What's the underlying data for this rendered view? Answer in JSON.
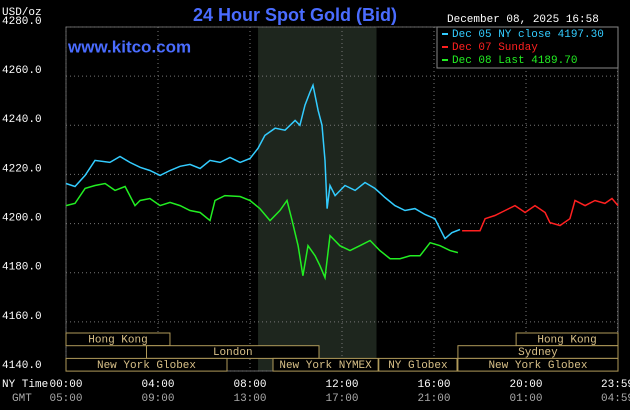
{
  "chart_data": {
    "type": "line",
    "title": "24 Hour Spot Gold (Bid)",
    "site": "www.kitco.com",
    "y_label": "USD/oz",
    "timestamp": "December 08, 2025 16:58",
    "x_row_labels": [
      "NY Time",
      "GMT"
    ],
    "xlim": [
      0,
      24
    ],
    "ylim": [
      4140,
      4280
    ],
    "yticks": [
      {
        "value": 4140,
        "label": "4140.0"
      },
      {
        "value": 4160,
        "label": "4160.0"
      },
      {
        "value": 4180,
        "label": "4180.0"
      },
      {
        "value": 4200,
        "label": "4200.0"
      },
      {
        "value": 4220,
        "label": "4220.0"
      },
      {
        "value": 4240,
        "label": "4240.0"
      },
      {
        "value": 4260,
        "label": "4260.0"
      },
      {
        "value": 4280,
        "label": "4280.0"
      }
    ],
    "xticks": [
      {
        "value": 0,
        "label": "00:00"
      },
      {
        "value": 4,
        "label": "04:00"
      },
      {
        "value": 8,
        "label": "08:00"
      },
      {
        "value": 12,
        "label": "12:00"
      },
      {
        "value": 16,
        "label": "16:00"
      },
      {
        "value": 20,
        "label": "20:00"
      },
      {
        "value": 23.98,
        "label": "23:59"
      }
    ],
    "gmt_ticks": [
      {
        "value": 0,
        "label": "05:00"
      },
      {
        "value": 4,
        "label": "09:00"
      },
      {
        "value": 8,
        "label": "13:00"
      },
      {
        "value": 12,
        "label": "17:00"
      },
      {
        "value": 16,
        "label": "21:00"
      },
      {
        "value": 20,
        "label": "01:00"
      },
      {
        "value": 23.98,
        "label": "04:59"
      }
    ],
    "grid": true,
    "shade": {
      "start": 8.35,
      "end": 13.5,
      "color": "#1e261e"
    },
    "session_rows": [
      [
        {
          "label": "Hong Kong",
          "start": 0,
          "end": 4.52
        },
        {
          "label": "Hong Kong",
          "start": 19.57,
          "end": 24
        }
      ],
      [
        {
          "label": "London",
          "start": 3.5,
          "end": 11
        },
        {
          "label": "Sydney",
          "start": 17.04,
          "end": 24
        }
      ],
      [
        {
          "label": "New York Globex",
          "start": 0,
          "end": 7
        },
        {
          "label": "New York NYMEX",
          "start": 9,
          "end": 13.57
        },
        {
          "label": "NY Globex",
          "start": 13.6,
          "end": 17
        },
        {
          "label": "New York Globex",
          "start": 17.04,
          "end": 24
        }
      ]
    ],
    "series": [
      {
        "name": "Dec 05 NY close 4197.30",
        "color": "#33ccff",
        "x": [
          0,
          0.39,
          0.83,
          1.26,
          1.91,
          2.35,
          2.78,
          3.22,
          3.65,
          4.09,
          4.52,
          4.96,
          5.39,
          5.83,
          6.26,
          6.7,
          7.13,
          7.57,
          8,
          8.35,
          8.65,
          9.09,
          9.52,
          9.96,
          10.17,
          10.39,
          10.61,
          10.74,
          10.96,
          11.13,
          11.26,
          11.35,
          11.48,
          11.7,
          12.13,
          12.57,
          13,
          13.43,
          13.87,
          14.3,
          14.74,
          15.17,
          15.61,
          16.04,
          16.48,
          16.78,
          17.13
        ],
        "values": [
          4216.3,
          4215.1,
          4219.6,
          4225.7,
          4224.9,
          4227.3,
          4224.9,
          4222.9,
          4221.6,
          4219.6,
          4221.6,
          4223.3,
          4224.1,
          4222.4,
          4225.7,
          4224.9,
          4226.9,
          4224.9,
          4226.5,
          4230.6,
          4235.9,
          4238.8,
          4238,
          4242,
          4240,
          4248.2,
          4253.5,
          4256.3,
          4246.1,
          4240,
          4225.7,
          4206.1,
          4215.5,
          4211.4,
          4215.5,
          4213.5,
          4216.7,
          4214.3,
          4210.6,
          4207.3,
          4205.3,
          4206.1,
          4203.7,
          4202,
          4193.9,
          4196.3,
          4197.6
        ]
      },
      {
        "name": "Dec 07 Sunday",
        "color": "#ff2020",
        "x": [
          17.22,
          18,
          18.22,
          18.65,
          19.09,
          19.52,
          19.96,
          20.39,
          20.83,
          21.04,
          21.48,
          21.91,
          22.13,
          22.57,
          23,
          23.43,
          23.74,
          24
        ],
        "values": [
          4197.1,
          4197.1,
          4202,
          4203.3,
          4205.3,
          4207.3,
          4204.5,
          4207.3,
          4204.5,
          4200.4,
          4199.2,
          4202,
          4209.4,
          4207.3,
          4209.4,
          4208.2,
          4210.2,
          4207.3
        ]
      },
      {
        "name": "Dec 08 Last 4189.70",
        "color": "#22ee22",
        "x": [
          0,
          0.39,
          0.83,
          1.26,
          1.7,
          2.13,
          2.57,
          3,
          3.22,
          3.65,
          4.09,
          4.52,
          4.96,
          5.39,
          5.83,
          6.26,
          6.48,
          6.91,
          7.57,
          8,
          8.43,
          8.87,
          9.3,
          9.61,
          9.83,
          10.09,
          10.3,
          10.52,
          10.83,
          11.04,
          11.26,
          11.48,
          11.91,
          12.35,
          12.78,
          13.22,
          13.65,
          14.09,
          14.52,
          14.96,
          15.39,
          15.83,
          16.26,
          16.7,
          17.04
        ],
        "values": [
          4207.3,
          4208.2,
          4214.3,
          4215.5,
          4216.3,
          4213.5,
          4215.1,
          4207.3,
          4209.4,
          4210.2,
          4207.3,
          4208.6,
          4207.3,
          4205.3,
          4204.5,
          4201.2,
          4209.4,
          4211.4,
          4211,
          4209.4,
          4206.1,
          4201.2,
          4205.3,
          4209.4,
          4201.2,
          4191,
          4178.8,
          4191,
          4186.9,
          4182.9,
          4178,
          4195.1,
          4191,
          4189,
          4191,
          4193.1,
          4189,
          4185.7,
          4185.7,
          4186.9,
          4186.9,
          4192.2,
          4191,
          4189,
          4188.2
        ]
      }
    ]
  }
}
